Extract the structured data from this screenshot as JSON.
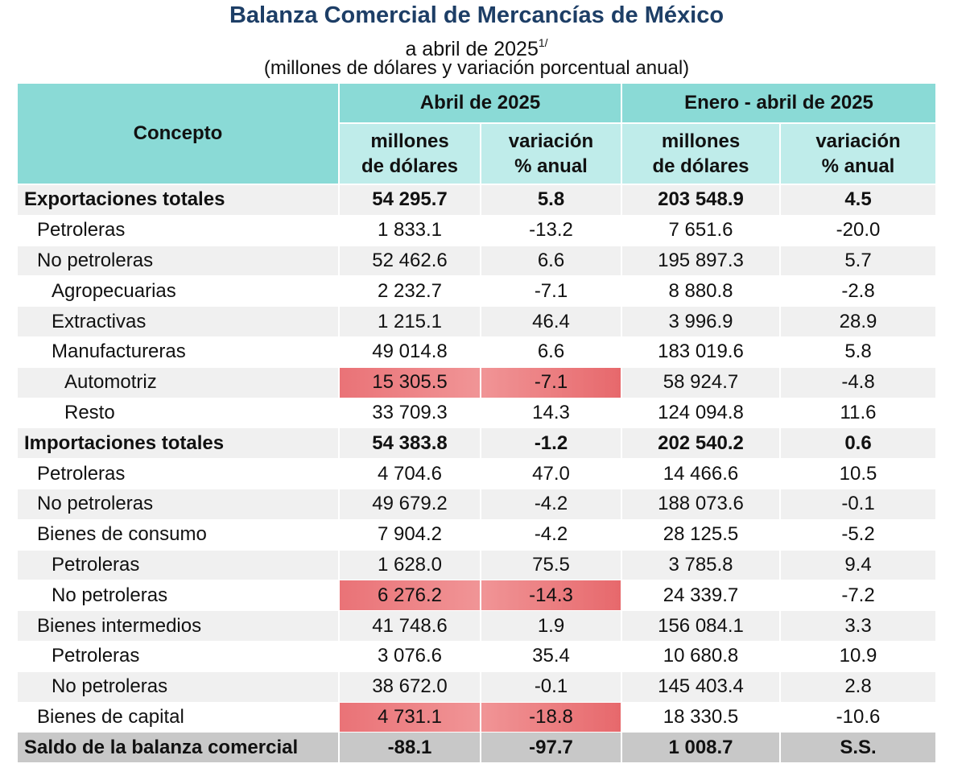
{
  "header": {
    "title": "Balanza Comercial de Mercancías de México",
    "subtitle": "a abril de 2025",
    "subtitle_note": "1/",
    "units": "(millones de dólares y variación porcentual anual)"
  },
  "columns": {
    "concept": "Concepto",
    "period1": "Abril de 2025",
    "period2": "Enero - abril de 2025",
    "millones_line1": "millones",
    "millones_line2": "de dólares",
    "variacion_line1": "variación",
    "variacion_line2": "% anual"
  },
  "highlight_color": "#e8676b",
  "rows": [
    {
      "label": "Exportaciones totales",
      "level": 0,
      "bold": true,
      "values": [
        "54 295.7",
        "5.8",
        "203 548.9",
        "4.5"
      ]
    },
    {
      "label": "Petroleras",
      "level": 1,
      "values": [
        "1 833.1",
        "-13.2",
        "7 651.6",
        "-20.0"
      ]
    },
    {
      "label": "No petroleras",
      "level": 1,
      "values": [
        "52 462.6",
        "6.6",
        "195 897.3",
        "5.7"
      ]
    },
    {
      "label": "Agropecuarias",
      "level": 2,
      "values": [
        "2 232.7",
        "-7.1",
        "8 880.8",
        "-2.8"
      ]
    },
    {
      "label": "Extractivas",
      "level": 2,
      "values": [
        "1 215.1",
        "46.4",
        "3 996.9",
        "28.9"
      ]
    },
    {
      "label": "Manufactureras",
      "level": 2,
      "values": [
        "49 014.8",
        "6.6",
        "183 019.6",
        "5.8"
      ]
    },
    {
      "label": "Automotriz",
      "level": 3,
      "highlight": true,
      "values": [
        "15 305.5",
        "-7.1",
        "58 924.7",
        "-4.8"
      ]
    },
    {
      "label": "Resto",
      "level": 3,
      "values": [
        "33 709.3",
        "14.3",
        "124 094.8",
        "11.6"
      ]
    },
    {
      "label": "Importaciones totales",
      "level": 0,
      "bold": true,
      "values": [
        "54 383.8",
        "-1.2",
        "202 540.2",
        "0.6"
      ]
    },
    {
      "label": "Petroleras",
      "level": 1,
      "values": [
        "4 704.6",
        "47.0",
        "14 466.6",
        "10.5"
      ]
    },
    {
      "label": "No petroleras",
      "level": 1,
      "values": [
        "49 679.2",
        "-4.2",
        "188 073.6",
        "-0.1"
      ]
    },
    {
      "label": "Bienes de consumo",
      "level": 1,
      "values": [
        "7 904.2",
        "-4.2",
        "28 125.5",
        "-5.2"
      ]
    },
    {
      "label": "Petroleras",
      "level": 2,
      "values": [
        "1 628.0",
        "75.5",
        "3 785.8",
        "9.4"
      ]
    },
    {
      "label": "No petroleras",
      "level": 2,
      "highlight": true,
      "values": [
        "6 276.2",
        "-14.3",
        "24 339.7",
        "-7.2"
      ]
    },
    {
      "label": "Bienes intermedios",
      "level": 1,
      "values": [
        "41 748.6",
        "1.9",
        "156 084.1",
        "3.3"
      ]
    },
    {
      "label": "Petroleras",
      "level": 2,
      "values": [
        "3 076.6",
        "35.4",
        "10 680.8",
        "10.9"
      ]
    },
    {
      "label": "No petroleras",
      "level": 2,
      "values": [
        "38 672.0",
        "-0.1",
        "145 403.4",
        "2.8"
      ]
    },
    {
      "label": "Bienes de capital",
      "level": 1,
      "highlight": true,
      "values": [
        "4 731.1",
        "-18.8",
        "18 330.5",
        "-10.6"
      ]
    },
    {
      "label": "Saldo de la balanza comercial",
      "level": 0,
      "bold": true,
      "total": true,
      "values": [
        "-88.1",
        "-97.7",
        "1 008.7",
        "S.S."
      ]
    }
  ]
}
